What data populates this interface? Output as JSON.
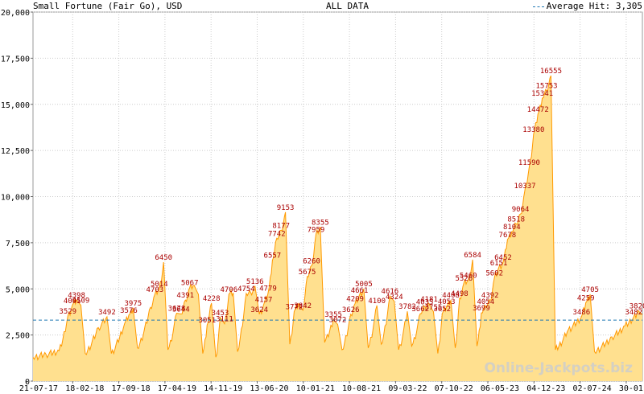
{
  "header": {
    "title": "Small Fortune (Fair Go), USD",
    "subtitle": "ALL DATA",
    "average_label": "Average Hit: 3,305"
  },
  "watermark": "Online-Jackpots.biz",
  "colors": {
    "line": "#ff9900",
    "fill": "#ffe08f",
    "avg": "#1f77b4",
    "labels": "#aa0000",
    "grid": "#cccccc"
  },
  "chart_data": {
    "type": "area",
    "title": "Small Fortune (Fair Go), USD",
    "subtitle": "ALL DATA",
    "ylim": [
      0,
      20000
    ],
    "y_ticks": [
      0,
      2500,
      5000,
      7500,
      10000,
      12500,
      15000,
      17500,
      20000
    ],
    "y_tick_labels": [
      "0",
      "2,500",
      "5,000",
      "7,500",
      "10,000",
      "12,500",
      "15,000",
      "17,500",
      "20,000"
    ],
    "x_tick_labels": [
      "21-07-17",
      "18-02-18",
      "17-09-18",
      "17-04-19",
      "14-11-19",
      "13-06-20",
      "10-01-21",
      "10-08-21",
      "09-03-22",
      "07-10-22",
      "06-05-23",
      "04-12-23",
      "02-07-24",
      "30-01-25"
    ],
    "average": 3305,
    "grid": true,
    "series": [
      {
        "values": [
          [
            0,
            1300
          ],
          [
            3,
            1450
          ],
          [
            6,
            1650
          ],
          [
            8,
            3529
          ],
          [
            9,
            4095
          ],
          [
            10,
            4398
          ],
          [
            11,
            4109
          ],
          [
            12,
            1500
          ],
          [
            15,
            2900
          ],
          [
            17,
            3492
          ],
          [
            18,
            1500
          ],
          [
            21,
            3100
          ],
          [
            22,
            3576
          ],
          [
            23,
            3975
          ],
          [
            24,
            1800
          ],
          [
            27,
            4000
          ],
          [
            28,
            4703
          ],
          [
            29,
            5014
          ],
          [
            30,
            6450
          ],
          [
            31,
            1700
          ],
          [
            33,
            3678
          ],
          [
            34,
            3644
          ],
          [
            35,
            4391
          ],
          [
            36,
            5067
          ],
          [
            37,
            5200
          ],
          [
            38,
            4700
          ],
          [
            39,
            1500
          ],
          [
            40,
            3051
          ],
          [
            41,
            4228
          ],
          [
            42,
            1300
          ],
          [
            43,
            3453
          ],
          [
            44,
            3111
          ],
          [
            45,
            4706
          ],
          [
            46,
            4780
          ],
          [
            47,
            1600
          ],
          [
            49,
            4754
          ],
          [
            50,
            4800
          ],
          [
            51,
            5136
          ],
          [
            52,
            3624
          ],
          [
            53,
            4157
          ],
          [
            54,
            4779
          ],
          [
            55,
            6557
          ],
          [
            56,
            7742
          ],
          [
            57,
            8177
          ],
          [
            58,
            9153
          ],
          [
            59,
            2000
          ],
          [
            60,
            3772
          ],
          [
            61,
            4200
          ],
          [
            62,
            3842
          ],
          [
            63,
            5675
          ],
          [
            64,
            6260
          ],
          [
            65,
            7959
          ],
          [
            66,
            8355
          ],
          [
            67,
            2100
          ],
          [
            69,
            3355
          ],
          [
            70,
            3072
          ],
          [
            71,
            1700
          ],
          [
            73,
            3626
          ],
          [
            74,
            4209
          ],
          [
            75,
            4661
          ],
          [
            76,
            5005
          ],
          [
            77,
            1800
          ],
          [
            79,
            4100
          ],
          [
            80,
            2000
          ],
          [
            82,
            4616
          ],
          [
            83,
            4324
          ],
          [
            84,
            1700
          ],
          [
            86,
            3782
          ],
          [
            87,
            1900
          ],
          [
            89,
            3662
          ],
          [
            90,
            4035
          ],
          [
            91,
            4181
          ],
          [
            92,
            3755
          ],
          [
            93,
            1500
          ],
          [
            94,
            3652
          ],
          [
            95,
            4053
          ],
          [
            96,
            4408
          ],
          [
            97,
            1800
          ],
          [
            98,
            4498
          ],
          [
            99,
            5326
          ],
          [
            100,
            5460
          ],
          [
            101,
            6584
          ],
          [
            102,
            1900
          ],
          [
            103,
            3699
          ],
          [
            104,
            4054
          ],
          [
            105,
            4392
          ],
          [
            106,
            5602
          ],
          [
            107,
            6151
          ],
          [
            108,
            6452
          ],
          [
            109,
            7678
          ],
          [
            110,
            8104
          ],
          [
            111,
            8518
          ],
          [
            112,
            9064
          ],
          [
            113,
            10337
          ],
          [
            114,
            11590
          ],
          [
            115,
            13380
          ],
          [
            116,
            14472
          ],
          [
            117,
            15341
          ],
          [
            118,
            15753
          ],
          [
            119,
            16555
          ],
          [
            120,
            1700
          ],
          [
            123,
            2800
          ],
          [
            126,
            3486
          ],
          [
            127,
            4259
          ],
          [
            128,
            4705
          ],
          [
            129,
            1600
          ],
          [
            133,
            2400
          ],
          [
            136,
            3000
          ],
          [
            138,
            3482
          ],
          [
            139,
            3820
          ],
          [
            140,
            3600
          ]
        ]
      }
    ],
    "value_labels": [
      {
        "x": 8,
        "text": "3529"
      },
      {
        "x": 9,
        "text": "4095"
      },
      {
        "x": 10,
        "text": "4398"
      },
      {
        "x": 11,
        "text": "4109"
      },
      {
        "x": 17,
        "text": "3492"
      },
      {
        "x": 22,
        "text": "3576"
      },
      {
        "x": 23,
        "text": "3975"
      },
      {
        "x": 28,
        "text": "4703"
      },
      {
        "x": 29,
        "text": "5014"
      },
      {
        "x": 30,
        "text": "6450"
      },
      {
        "x": 33,
        "text": "3678"
      },
      {
        "x": 34,
        "text": "3644"
      },
      {
        "x": 35,
        "text": "4391"
      },
      {
        "x": 36,
        "text": "5067"
      },
      {
        "x": 40,
        "text": "3051"
      },
      {
        "x": 41,
        "text": "4228"
      },
      {
        "x": 43,
        "text": "3453"
      },
      {
        "x": 44,
        "text": "3111"
      },
      {
        "x": 45,
        "text": "4706"
      },
      {
        "x": 49,
        "text": "4754"
      },
      {
        "x": 51,
        "text": "5136"
      },
      {
        "x": 52,
        "text": "3624"
      },
      {
        "x": 53,
        "text": "4157"
      },
      {
        "x": 54,
        "text": "4779"
      },
      {
        "x": 55,
        "text": "6557"
      },
      {
        "x": 56,
        "text": "7742"
      },
      {
        "x": 57,
        "text": "8177"
      },
      {
        "x": 58,
        "text": "9153"
      },
      {
        "x": 60,
        "text": "3772"
      },
      {
        "x": 62,
        "text": "3842"
      },
      {
        "x": 63,
        "text": "5675"
      },
      {
        "x": 64,
        "text": "6260"
      },
      {
        "x": 65,
        "text": "7959"
      },
      {
        "x": 66,
        "text": "8355"
      },
      {
        "x": 69,
        "text": "3355"
      },
      {
        "x": 70,
        "text": "3072"
      },
      {
        "x": 73,
        "text": "3626"
      },
      {
        "x": 74,
        "text": "4209"
      },
      {
        "x": 75,
        "text": "4661"
      },
      {
        "x": 76,
        "text": "5005"
      },
      {
        "x": 79,
        "text": "4100"
      },
      {
        "x": 82,
        "text": "4616"
      },
      {
        "x": 83,
        "text": "4324"
      },
      {
        "x": 86,
        "text": "3782"
      },
      {
        "x": 89,
        "text": "3662"
      },
      {
        "x": 90,
        "text": "4035"
      },
      {
        "x": 91,
        "text": "4181"
      },
      {
        "x": 92,
        "text": "3755"
      },
      {
        "x": 94,
        "text": "3652"
      },
      {
        "x": 95,
        "text": "4053"
      },
      {
        "x": 96,
        "text": "4408"
      },
      {
        "x": 98,
        "text": "4498"
      },
      {
        "x": 99,
        "text": "5326"
      },
      {
        "x": 100,
        "text": "5460"
      },
      {
        "x": 101,
        "text": "6584"
      },
      {
        "x": 103,
        "text": "3699"
      },
      {
        "x": 104,
        "text": "4054"
      },
      {
        "x": 105,
        "text": "4392"
      },
      {
        "x": 106,
        "text": "5602"
      },
      {
        "x": 107,
        "text": "6151"
      },
      {
        "x": 108,
        "text": "6452"
      },
      {
        "x": 109,
        "text": "7678"
      },
      {
        "x": 110,
        "text": "8104"
      },
      {
        "x": 111,
        "text": "8518"
      },
      {
        "x": 112,
        "text": "9064"
      },
      {
        "x": 113,
        "text": "10337"
      },
      {
        "x": 114,
        "text": "11590"
      },
      {
        "x": 115,
        "text": "13380"
      },
      {
        "x": 116,
        "text": "14472"
      },
      {
        "x": 117,
        "text": "15341"
      },
      {
        "x": 118,
        "text": "15753"
      },
      {
        "x": 119,
        "text": "16555"
      },
      {
        "x": 126,
        "text": "3486"
      },
      {
        "x": 127,
        "text": "4259"
      },
      {
        "x": 128,
        "text": "4705"
      },
      {
        "x": 138,
        "text": "3482"
      },
      {
        "x": 139,
        "text": "3820"
      }
    ]
  }
}
